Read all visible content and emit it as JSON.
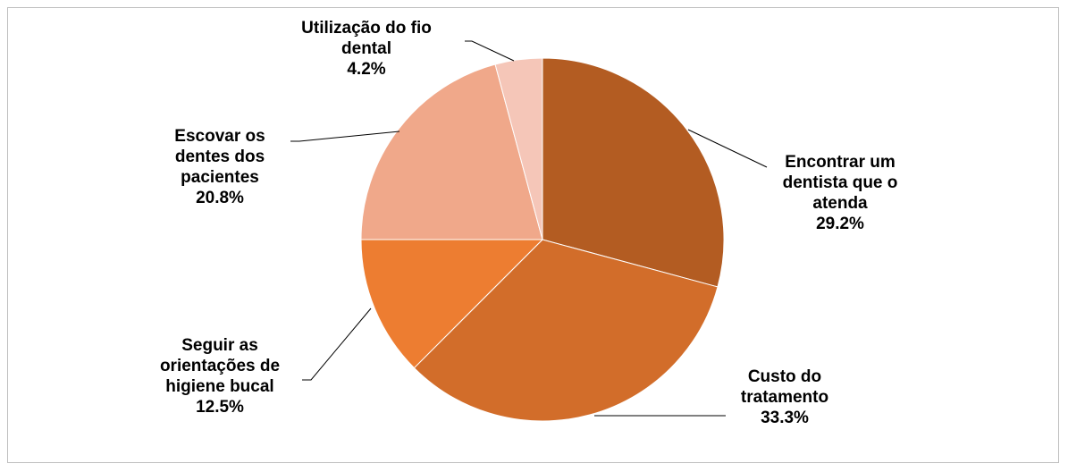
{
  "chart_data": {
    "type": "pie",
    "categories": [
      "Encontrar um dentista que o atenda",
      "Custo do tratamento",
      "Seguir as orientações de higiene bucal",
      "Escovar os dentes dos pacientes",
      "Utilização do fio dental"
    ],
    "values": [
      29.2,
      33.3,
      12.5,
      20.8,
      4.2
    ],
    "value_labels": [
      "29.2%",
      "33.3%",
      "12.5%",
      "20.8%",
      "4.2%"
    ],
    "colors": [
      "#b35c22",
      "#d26d2a",
      "#ed7d31",
      "#f0a88a",
      "#f5c6b8"
    ]
  }
}
